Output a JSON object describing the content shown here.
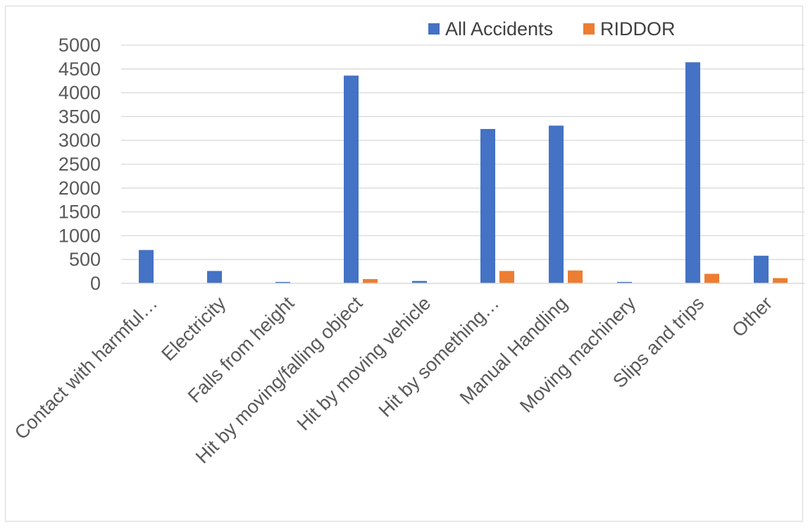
{
  "chart_data": {
    "type": "bar",
    "title": "",
    "xlabel": "",
    "ylabel": "",
    "ylim": [
      0,
      5000
    ],
    "yticks": [
      0,
      500,
      1000,
      1500,
      2000,
      2500,
      3000,
      3500,
      4000,
      4500,
      5000
    ],
    "grid": true,
    "legend_position": "top-right",
    "categories": [
      "Contact with harmful…",
      "Electricity",
      "Falls from height",
      "Hit by moving/falling object",
      "Hit by moving vehicle",
      "Hit by something…",
      "Manual Handling",
      "Moving machinery",
      "Slips and trips",
      "Other"
    ],
    "series": [
      {
        "name": "All Accidents",
        "color": "#4472c4",
        "values": [
          700,
          260,
          30,
          4360,
          50,
          3240,
          3310,
          30,
          4640,
          580
        ]
      },
      {
        "name": "RIDDOR",
        "color": "#ed7d31",
        "values": [
          5,
          2,
          5,
          90,
          5,
          260,
          270,
          2,
          200,
          110
        ]
      }
    ]
  }
}
